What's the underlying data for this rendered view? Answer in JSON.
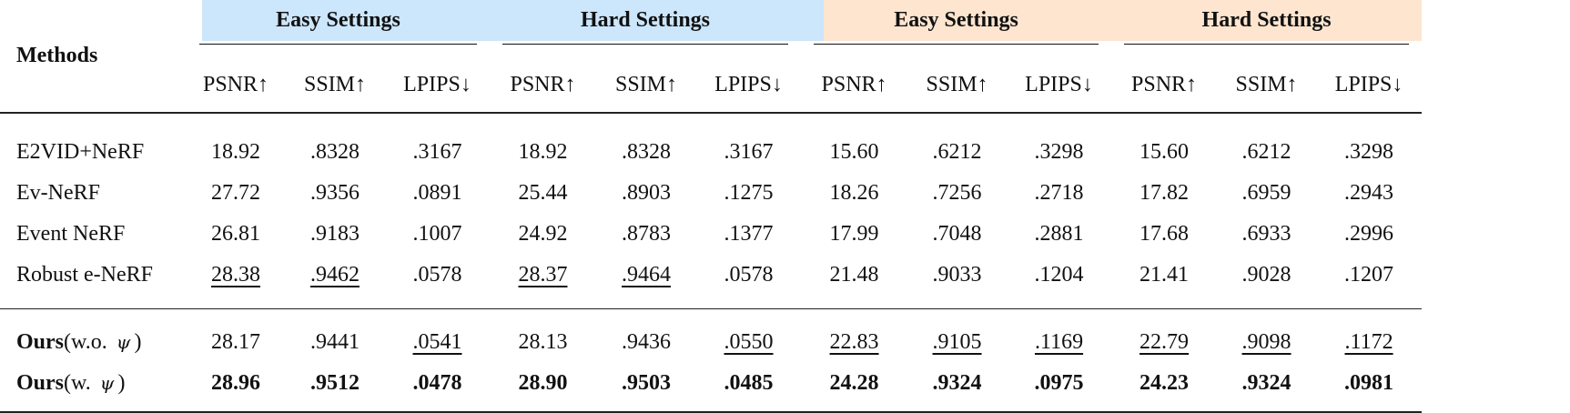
{
  "colors": {
    "group_a_bg": "#cce6fb",
    "group_b_bg": "#fde5cf"
  },
  "header": {
    "methods": "Methods",
    "groups": [
      "Easy Settings",
      "Hard Settings",
      "Easy Settings",
      "Hard Settings"
    ],
    "metrics": [
      "PSNR↑",
      "SSIM↑",
      "LPIPS↓",
      "PSNR↑",
      "SSIM↑",
      "LPIPS↓",
      "PSNR↑",
      "SSIM↑",
      "LPIPS↓",
      "PSNR↑",
      "SSIM↑",
      "LPIPS↓"
    ]
  },
  "rows": [
    {
      "method": "E2VID+NeRF",
      "values": [
        "18.92",
        ".8328",
        ".3167",
        "18.92",
        ".8328",
        ".3167",
        "15.60",
        ".6212",
        ".3298",
        "15.60",
        ".6212",
        ".3298"
      ],
      "underline": [],
      "bold": false
    },
    {
      "method": "Ev-NeRF",
      "values": [
        "27.72",
        ".9356",
        ".0891",
        "25.44",
        ".8903",
        ".1275",
        "18.26",
        ".7256",
        ".2718",
        "17.82",
        ".6959",
        ".2943"
      ],
      "underline": [],
      "bold": false
    },
    {
      "method": "Event NeRF",
      "values": [
        "26.81",
        ".9183",
        ".1007",
        "24.92",
        ".8783",
        ".1377",
        "17.99",
        ".7048",
        ".2881",
        "17.68",
        ".6933",
        ".2996"
      ],
      "underline": [],
      "bold": false
    },
    {
      "method": "Robust e-NeRF",
      "values": [
        "28.38",
        ".9462",
        ".0578",
        "28.37",
        ".9464",
        ".0578",
        "21.48",
        ".9033",
        ".1204",
        "21.41",
        ".9028",
        ".1207"
      ],
      "underline": [
        0,
        1,
        3,
        4
      ],
      "bold": false
    },
    {
      "method_bold": "Ours",
      "method_rest_pre": "(w.o.",
      "method_symbol": "ψ",
      "method_rest_post": ")",
      "values": [
        "28.17",
        ".9441",
        ".0541",
        "28.13",
        ".9436",
        ".0550",
        "22.83",
        ".9105",
        ".1169",
        "22.79",
        ".9098",
        ".1172"
      ],
      "underline": [
        2,
        5,
        6,
        7,
        8,
        9,
        10,
        11
      ],
      "bold": false
    },
    {
      "method_bold": "Ours",
      "method_rest_pre": "(w.",
      "method_symbol": "ψ",
      "method_rest_post": ")",
      "values": [
        "28.96",
        ".9512",
        ".0478",
        "28.90",
        ".9503",
        ".0485",
        "24.28",
        ".9324",
        ".0975",
        "24.23",
        ".9324",
        ".0981"
      ],
      "underline": [],
      "bold": true
    }
  ]
}
